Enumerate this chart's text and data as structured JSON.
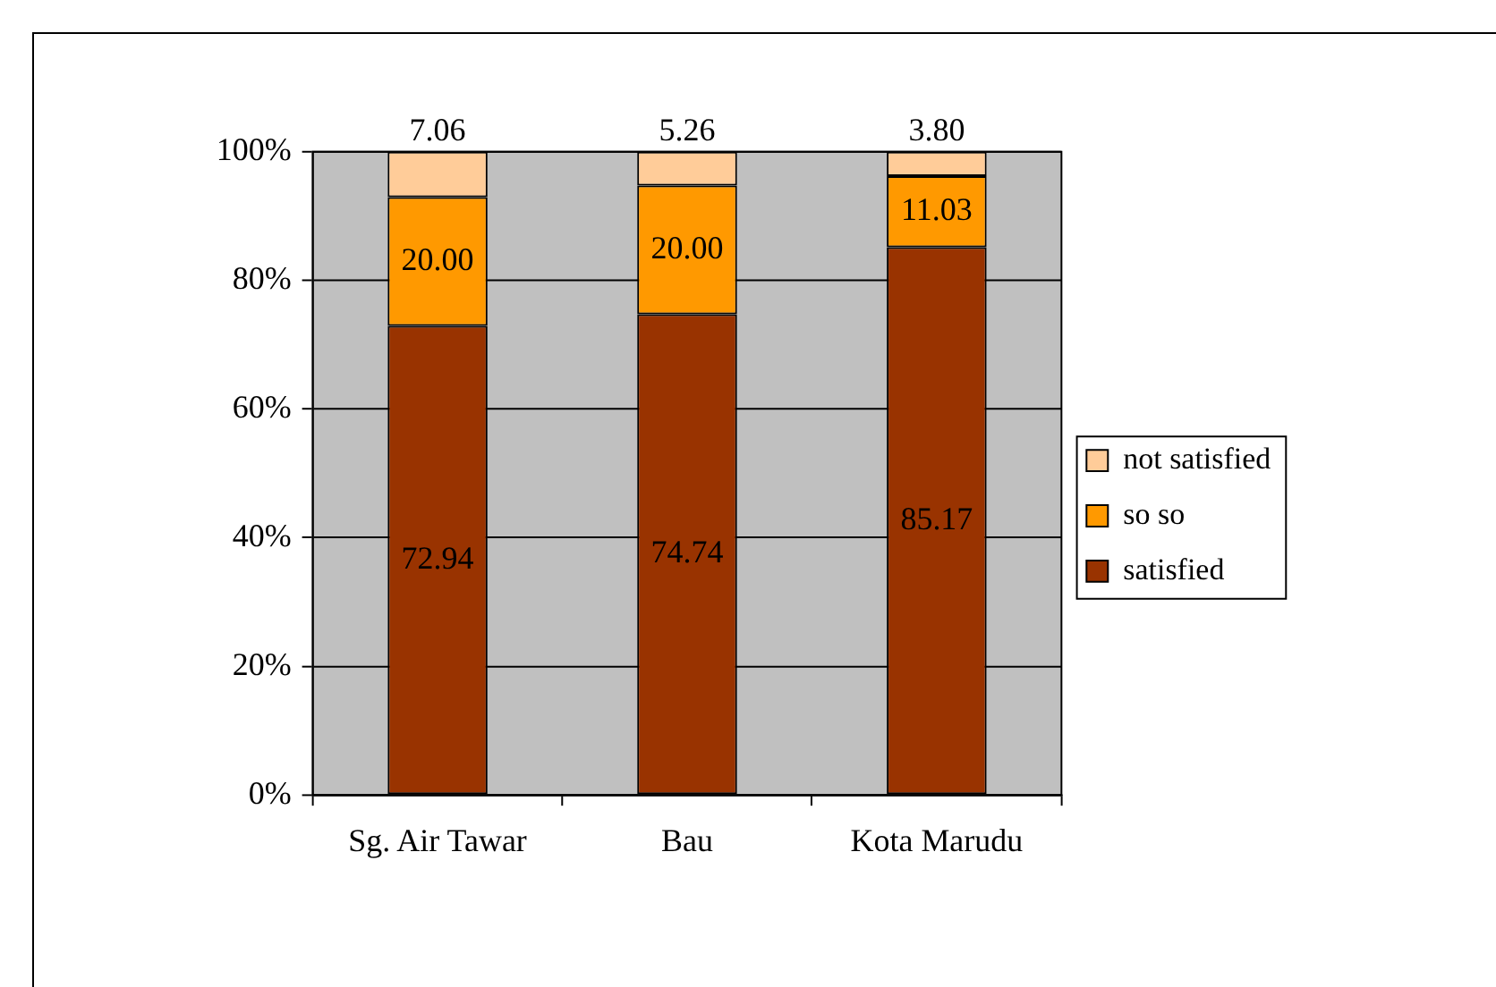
{
  "chart_data": {
    "type": "bar",
    "stacked": true,
    "categories": [
      "Sg. Air Tawar",
      "Bau",
      "Kota Marudu"
    ],
    "series": [
      {
        "name": "satisfied",
        "color": "#993300",
        "values": [
          72.94,
          74.74,
          85.17
        ]
      },
      {
        "name": "so so",
        "color": "#ff9900",
        "values": [
          20.0,
          20.0,
          11.03
        ]
      },
      {
        "name": "not satisfied",
        "color": "#ffcc99",
        "values": [
          7.06,
          5.26,
          3.8
        ]
      }
    ],
    "value_labels": [
      [
        "72.94",
        "74.74",
        "85.17"
      ],
      [
        "20.00",
        "20.00",
        "11.03"
      ],
      [
        "7.06",
        "5.26",
        "3.80"
      ]
    ],
    "ylim": [
      0,
      100
    ],
    "yticks": [
      {
        "value": 0,
        "label": "0%"
      },
      {
        "value": 20,
        "label": "20%"
      },
      {
        "value": 40,
        "label": "40%"
      },
      {
        "value": 60,
        "label": "60%"
      },
      {
        "value": 80,
        "label": "80%"
      },
      {
        "value": 100,
        "label": "100%"
      }
    ],
    "grid": "y",
    "legend": "right"
  }
}
